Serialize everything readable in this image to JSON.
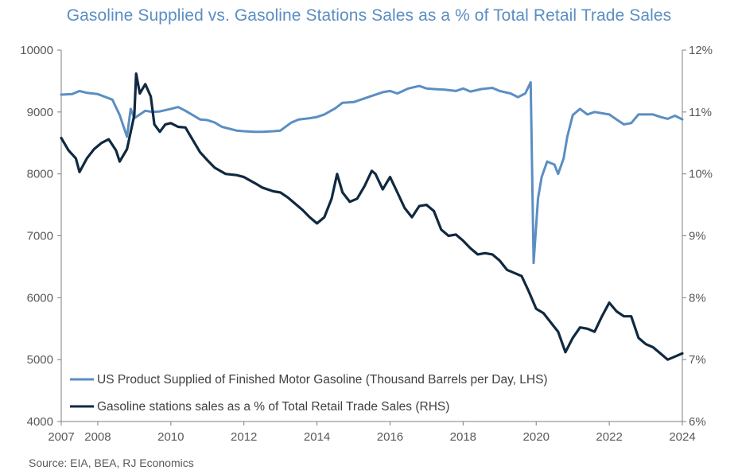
{
  "title": "Gasoline Supplied vs. Gasoline Stations Sales as a % of Total Retail Trade Sales",
  "source": "Source: EIA, BEA, RJ Economics",
  "colors": {
    "lhs_series": "#5b8ec3",
    "rhs_series": "#0f2940",
    "axis": "#7f7f7f",
    "text": "#595959"
  },
  "chart_data": {
    "type": "line",
    "title": "Gasoline Supplied vs. Gasoline Stations Sales as a % of Total Retail Trade Sales",
    "x_ticks": [
      "2007",
      "2008",
      "2010",
      "2012",
      "2014",
      "2016",
      "2018",
      "2020",
      "2022",
      "2024"
    ],
    "xlim": [
      2007,
      2024
    ],
    "y_left": {
      "lim": [
        4000,
        10000
      ],
      "ticks": [
        "10000",
        "9000",
        "8000",
        "7000",
        "6000",
        "5000",
        "4000"
      ]
    },
    "y_right": {
      "lim": [
        6,
        12
      ],
      "ticks": [
        "12%",
        "11%",
        "10%",
        "9%",
        "8%",
        "7%",
        "6%"
      ]
    },
    "legend_position": "bottom-left",
    "series": [
      {
        "name": "US Product Supplied of Finished Motor Gasoline (Thousand Barrels per Day, LHS)",
        "axis": "left",
        "color": "#5b8ec3",
        "points": [
          [
            2007.0,
            9280
          ],
          [
            2007.3,
            9290
          ],
          [
            2007.5,
            9340
          ],
          [
            2007.7,
            9310
          ],
          [
            2008.0,
            9290
          ],
          [
            2008.4,
            9200
          ],
          [
            2008.6,
            8950
          ],
          [
            2008.8,
            8600
          ],
          [
            2008.9,
            9050
          ],
          [
            2009.0,
            8900
          ],
          [
            2009.3,
            9020
          ],
          [
            2009.5,
            9000
          ],
          [
            2009.7,
            9010
          ],
          [
            2010.0,
            9050
          ],
          [
            2010.2,
            9080
          ],
          [
            2010.4,
            9020
          ],
          [
            2010.6,
            8950
          ],
          [
            2010.8,
            8880
          ],
          [
            2011.0,
            8870
          ],
          [
            2011.2,
            8830
          ],
          [
            2011.4,
            8760
          ],
          [
            2011.6,
            8730
          ],
          [
            2011.8,
            8700
          ],
          [
            2012.0,
            8690
          ],
          [
            2012.3,
            8680
          ],
          [
            2012.5,
            8680
          ],
          [
            2012.8,
            8690
          ],
          [
            2013.0,
            8700
          ],
          [
            2013.3,
            8830
          ],
          [
            2013.5,
            8880
          ],
          [
            2013.8,
            8900
          ],
          [
            2014.0,
            8920
          ],
          [
            2014.2,
            8960
          ],
          [
            2014.5,
            9060
          ],
          [
            2014.7,
            9150
          ],
          [
            2015.0,
            9160
          ],
          [
            2015.2,
            9200
          ],
          [
            2015.5,
            9260
          ],
          [
            2015.8,
            9320
          ],
          [
            2016.0,
            9340
          ],
          [
            2016.2,
            9300
          ],
          [
            2016.5,
            9380
          ],
          [
            2016.8,
            9420
          ],
          [
            2017.0,
            9380
          ],
          [
            2017.2,
            9370
          ],
          [
            2017.5,
            9360
          ],
          [
            2017.8,
            9340
          ],
          [
            2018.0,
            9380
          ],
          [
            2018.2,
            9330
          ],
          [
            2018.5,
            9370
          ],
          [
            2018.8,
            9390
          ],
          [
            2019.0,
            9340
          ],
          [
            2019.3,
            9300
          ],
          [
            2019.5,
            9240
          ],
          [
            2019.7,
            9300
          ],
          [
            2019.85,
            9480
          ],
          [
            2019.93,
            6560
          ],
          [
            2020.05,
            7600
          ],
          [
            2020.15,
            7950
          ],
          [
            2020.3,
            8200
          ],
          [
            2020.5,
            8150
          ],
          [
            2020.6,
            8000
          ],
          [
            2020.75,
            8250
          ],
          [
            2020.85,
            8600
          ],
          [
            2021.0,
            8950
          ],
          [
            2021.2,
            9050
          ],
          [
            2021.4,
            8960
          ],
          [
            2021.6,
            9000
          ],
          [
            2021.8,
            8980
          ],
          [
            2022.0,
            8960
          ],
          [
            2022.2,
            8880
          ],
          [
            2022.4,
            8800
          ],
          [
            2022.6,
            8820
          ],
          [
            2022.8,
            8960
          ],
          [
            2023.0,
            8960
          ],
          [
            2023.2,
            8960
          ],
          [
            2023.4,
            8920
          ],
          [
            2023.6,
            8890
          ],
          [
            2023.8,
            8940
          ],
          [
            2024.0,
            8880
          ]
        ]
      },
      {
        "name": "Gasoline stations sales as a % of Total Retail Trade Sales (RHS)",
        "axis": "right",
        "color": "#0f2940",
        "points": [
          [
            2007.0,
            10.58
          ],
          [
            2007.2,
            10.38
          ],
          [
            2007.4,
            10.25
          ],
          [
            2007.5,
            10.03
          ],
          [
            2007.7,
            10.25
          ],
          [
            2007.9,
            10.4
          ],
          [
            2008.1,
            10.5
          ],
          [
            2008.3,
            10.56
          ],
          [
            2008.5,
            10.38
          ],
          [
            2008.6,
            10.2
          ],
          [
            2008.8,
            10.4
          ],
          [
            2009.0,
            10.95
          ],
          [
            2009.05,
            11.62
          ],
          [
            2009.15,
            11.3
          ],
          [
            2009.3,
            11.45
          ],
          [
            2009.45,
            11.25
          ],
          [
            2009.55,
            10.8
          ],
          [
            2009.7,
            10.68
          ],
          [
            2009.85,
            10.8
          ],
          [
            2010.0,
            10.82
          ],
          [
            2010.2,
            10.76
          ],
          [
            2010.4,
            10.75
          ],
          [
            2010.6,
            10.55
          ],
          [
            2010.8,
            10.35
          ],
          [
            2011.0,
            10.22
          ],
          [
            2011.2,
            10.1
          ],
          [
            2011.5,
            10.0
          ],
          [
            2011.8,
            9.98
          ],
          [
            2012.0,
            9.95
          ],
          [
            2012.3,
            9.85
          ],
          [
            2012.5,
            9.78
          ],
          [
            2012.8,
            9.72
          ],
          [
            2013.0,
            9.7
          ],
          [
            2013.2,
            9.62
          ],
          [
            2013.4,
            9.52
          ],
          [
            2013.6,
            9.42
          ],
          [
            2013.8,
            9.3
          ],
          [
            2014.0,
            9.2
          ],
          [
            2014.2,
            9.3
          ],
          [
            2014.4,
            9.6
          ],
          [
            2014.55,
            10.0
          ],
          [
            2014.7,
            9.7
          ],
          [
            2014.9,
            9.55
          ],
          [
            2015.1,
            9.6
          ],
          [
            2015.3,
            9.8
          ],
          [
            2015.5,
            10.05
          ],
          [
            2015.6,
            10.0
          ],
          [
            2015.8,
            9.75
          ],
          [
            2016.0,
            9.95
          ],
          [
            2016.2,
            9.7
          ],
          [
            2016.4,
            9.45
          ],
          [
            2016.6,
            9.3
          ],
          [
            2016.8,
            9.48
          ],
          [
            2017.0,
            9.5
          ],
          [
            2017.2,
            9.4
          ],
          [
            2017.4,
            9.1
          ],
          [
            2017.6,
            9.0
          ],
          [
            2017.8,
            9.02
          ],
          [
            2018.0,
            8.92
          ],
          [
            2018.2,
            8.8
          ],
          [
            2018.4,
            8.7
          ],
          [
            2018.6,
            8.72
          ],
          [
            2018.8,
            8.7
          ],
          [
            2019.0,
            8.6
          ],
          [
            2019.2,
            8.45
          ],
          [
            2019.4,
            8.4
          ],
          [
            2019.6,
            8.35
          ],
          [
            2019.8,
            8.1
          ],
          [
            2019.9,
            7.96
          ],
          [
            2020.0,
            7.82
          ],
          [
            2020.2,
            7.75
          ],
          [
            2020.4,
            7.6
          ],
          [
            2020.6,
            7.45
          ],
          [
            2020.8,
            7.12
          ],
          [
            2021.0,
            7.35
          ],
          [
            2021.2,
            7.52
          ],
          [
            2021.4,
            7.5
          ],
          [
            2021.6,
            7.45
          ],
          [
            2021.8,
            7.7
          ],
          [
            2022.0,
            7.92
          ],
          [
            2022.2,
            7.78
          ],
          [
            2022.4,
            7.7
          ],
          [
            2022.6,
            7.7
          ],
          [
            2022.8,
            7.35
          ],
          [
            2023.0,
            7.25
          ],
          [
            2023.2,
            7.2
          ],
          [
            2023.4,
            7.1
          ],
          [
            2023.6,
            7.0
          ],
          [
            2023.8,
            7.05
          ],
          [
            2024.0,
            7.1
          ]
        ]
      }
    ]
  }
}
